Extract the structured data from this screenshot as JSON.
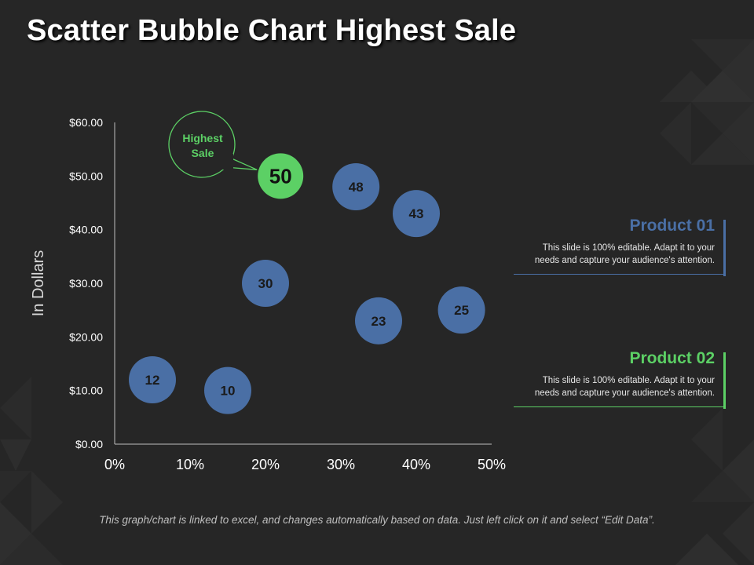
{
  "title": "Scatter Bubble Chart Highest Sale",
  "colors": {
    "background": "#262626",
    "bubble": "#4a6fa5",
    "highlight": "#5cd065",
    "axis": "#bfbfbf",
    "text": "#ffffff"
  },
  "chart_data": {
    "type": "scatter",
    "ylabel": "In Dollars",
    "xlabel": "",
    "x_ticks": [
      "0%",
      "10%",
      "20%",
      "30%",
      "40%",
      "50%"
    ],
    "y_ticks": [
      "$0.00",
      "$10.00",
      "$20.00",
      "$30.00",
      "$40.00",
      "$50.00",
      "$60.00"
    ],
    "xlim": [
      0,
      50
    ],
    "ylim": [
      0,
      60
    ],
    "points": [
      {
        "x": 5,
        "y": 12,
        "label": "12"
      },
      {
        "x": 15,
        "y": 10,
        "label": "10"
      },
      {
        "x": 20,
        "y": 30,
        "label": "30"
      },
      {
        "x": 22,
        "y": 50,
        "label": "50",
        "highlight": true
      },
      {
        "x": 32,
        "y": 48,
        "label": "48"
      },
      {
        "x": 35,
        "y": 23,
        "label": "23"
      },
      {
        "x": 40,
        "y": 43,
        "label": "43"
      },
      {
        "x": 46,
        "y": 25,
        "label": "25"
      }
    ],
    "callout": {
      "text_line1": "Highest",
      "text_line2": "Sale"
    }
  },
  "products": [
    {
      "title": "Product 01",
      "desc_line1": "This slide is 100% editable. Adapt it to your",
      "desc_line2": "needs and capture your audience's attention.",
      "color": "#4a6fa5"
    },
    {
      "title": "Product 02",
      "desc_line1": "This slide is 100% editable. Adapt it to your",
      "desc_line2": "needs and capture your audience's attention.",
      "color": "#5cd065"
    }
  ],
  "footer": "This graph/chart is linked to excel, and changes automatically based on data. Just left click on it and select “Edit Data”."
}
